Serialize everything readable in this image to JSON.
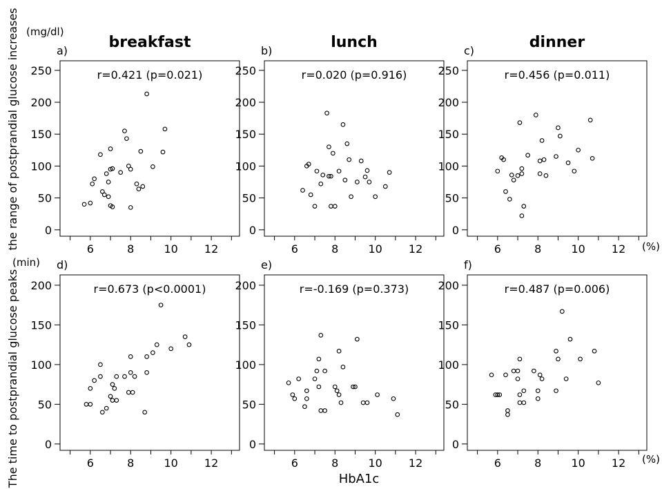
{
  "figure": {
    "y_label_top": "the range of postprandial glucose increases",
    "y_label_bottom": "The time to postprandial glucose peaks",
    "unit_top": "(mg/dl)",
    "unit_bottom": "(min)",
    "x_unit": "(%)",
    "x_label": "HbA1c"
  },
  "chart_data": [
    {
      "type": "scatter",
      "panel": "a)",
      "title": "breakfast",
      "stat": "r=0.421 (p=0.021)",
      "xlim": [
        4.5,
        13.4
      ],
      "ylim": [
        -10,
        265
      ],
      "xticks": [
        6,
        8,
        10,
        12
      ],
      "yticks": [
        0,
        50,
        100,
        150,
        200,
        250
      ],
      "grid": false,
      "points": [
        [
          5.7,
          40
        ],
        [
          6.0,
          42
        ],
        [
          6.1,
          72
        ],
        [
          6.2,
          80
        ],
        [
          6.5,
          118
        ],
        [
          6.6,
          60
        ],
        [
          6.7,
          55
        ],
        [
          6.8,
          88
        ],
        [
          6.9,
          75
        ],
        [
          6.9,
          52
        ],
        [
          7.0,
          127
        ],
        [
          7.0,
          38
        ],
        [
          7.0,
          95
        ],
        [
          7.1,
          96
        ],
        [
          7.1,
          36
        ],
        [
          7.5,
          90
        ],
        [
          7.7,
          155
        ],
        [
          7.8,
          143
        ],
        [
          7.9,
          100
        ],
        [
          8.0,
          95
        ],
        [
          8.0,
          35
        ],
        [
          8.3,
          72
        ],
        [
          8.4,
          64
        ],
        [
          8.5,
          123
        ],
        [
          8.6,
          68
        ],
        [
          8.8,
          213
        ],
        [
          9.1,
          99
        ],
        [
          9.6,
          122
        ],
        [
          9.7,
          158
        ]
      ]
    },
    {
      "type": "scatter",
      "panel": "b)",
      "title": "lunch",
      "stat": "r=0.020 (p=0.916)",
      "xlim": [
        4.5,
        13.4
      ],
      "ylim": [
        -10,
        265
      ],
      "xticks": [
        6,
        8,
        10,
        12
      ],
      "yticks": [
        0,
        50,
        100,
        150,
        200,
        250
      ],
      "grid": false,
      "points": [
        [
          6.4,
          62
        ],
        [
          6.6,
          100
        ],
        [
          6.7,
          103
        ],
        [
          6.8,
          55
        ],
        [
          7.0,
          37
        ],
        [
          7.1,
          92
        ],
        [
          7.3,
          72
        ],
        [
          7.4,
          86
        ],
        [
          7.6,
          183
        ],
        [
          7.7,
          130
        ],
        [
          7.7,
          84
        ],
        [
          7.8,
          84
        ],
        [
          7.8,
          37
        ],
        [
          7.9,
          120
        ],
        [
          8.0,
          37
        ],
        [
          8.2,
          92
        ],
        [
          8.4,
          165
        ],
        [
          8.5,
          78
        ],
        [
          8.6,
          135
        ],
        [
          8.7,
          110
        ],
        [
          8.8,
          52
        ],
        [
          9.1,
          75
        ],
        [
          9.3,
          108
        ],
        [
          9.5,
          83
        ],
        [
          9.6,
          93
        ],
        [
          9.7,
          75
        ],
        [
          10.0,
          52
        ],
        [
          10.5,
          68
        ],
        [
          10.7,
          90
        ]
      ]
    },
    {
      "type": "scatter",
      "panel": "c)",
      "title": "dinner",
      "stat": "r=0.456 (p=0.011)",
      "xlim": [
        4.5,
        13.4
      ],
      "ylim": [
        -10,
        265
      ],
      "xticks": [
        6,
        8,
        10,
        12
      ],
      "yticks": [
        0,
        50,
        100,
        150,
        200,
        250
      ],
      "grid": false,
      "points": [
        [
          6.0,
          92
        ],
        [
          6.2,
          113
        ],
        [
          6.3,
          110
        ],
        [
          6.4,
          60
        ],
        [
          6.6,
          48
        ],
        [
          6.7,
          86
        ],
        [
          6.8,
          78
        ],
        [
          7.0,
          85
        ],
        [
          7.1,
          168
        ],
        [
          7.2,
          96
        ],
        [
          7.2,
          88
        ],
        [
          7.2,
          22
        ],
        [
          7.3,
          37
        ],
        [
          7.5,
          117
        ],
        [
          7.9,
          180
        ],
        [
          8.1,
          88
        ],
        [
          8.1,
          108
        ],
        [
          8.2,
          140
        ],
        [
          8.3,
          110
        ],
        [
          8.4,
          85
        ],
        [
          8.9,
          115
        ],
        [
          9.0,
          160
        ],
        [
          9.1,
          147
        ],
        [
          9.5,
          105
        ],
        [
          9.8,
          92
        ],
        [
          10.0,
          125
        ],
        [
          10.6,
          172
        ],
        [
          10.7,
          112
        ]
      ]
    },
    {
      "type": "scatter",
      "panel": "d)",
      "title": "",
      "stat": "r=0.673 (p<0.0001)",
      "xlim": [
        4.5,
        13.4
      ],
      "ylim": [
        -8,
        213
      ],
      "xticks": [
        6,
        8,
        10,
        12
      ],
      "yticks": [
        0,
        50,
        100,
        150,
        200
      ],
      "grid": false,
      "points": [
        [
          5.8,
          50
        ],
        [
          6.0,
          50
        ],
        [
          6.0,
          70
        ],
        [
          6.2,
          80
        ],
        [
          6.5,
          85
        ],
        [
          6.5,
          100
        ],
        [
          6.6,
          40
        ],
        [
          6.8,
          45
        ],
        [
          7.0,
          60
        ],
        [
          7.1,
          55
        ],
        [
          7.1,
          75
        ],
        [
          7.2,
          70
        ],
        [
          7.3,
          55
        ],
        [
          7.3,
          85
        ],
        [
          7.7,
          85
        ],
        [
          7.9,
          65
        ],
        [
          8.0,
          90
        ],
        [
          8.0,
          110
        ],
        [
          8.1,
          65
        ],
        [
          8.2,
          85
        ],
        [
          8.7,
          40
        ],
        [
          8.8,
          110
        ],
        [
          8.8,
          90
        ],
        [
          9.1,
          115
        ],
        [
          9.3,
          125
        ],
        [
          9.5,
          175
        ],
        [
          10.0,
          120
        ],
        [
          10.7,
          135
        ],
        [
          10.9,
          125
        ]
      ]
    },
    {
      "type": "scatter",
      "panel": "e)",
      "title": "",
      "stat": "r=-0.169 (p=0.373)",
      "xlim": [
        4.5,
        13.4
      ],
      "ylim": [
        -8,
        213
      ],
      "xticks": [
        6,
        8,
        10,
        12
      ],
      "yticks": [
        0,
        50,
        100,
        150,
        200
      ],
      "grid": false,
      "points": [
        [
          5.7,
          77
        ],
        [
          5.9,
          62
        ],
        [
          6.0,
          57
        ],
        [
          6.2,
          82
        ],
        [
          6.5,
          47
        ],
        [
          6.6,
          57
        ],
        [
          6.6,
          67
        ],
        [
          7.0,
          82
        ],
        [
          7.1,
          92
        ],
        [
          7.2,
          72
        ],
        [
          7.2,
          107
        ],
        [
          7.3,
          137
        ],
        [
          7.3,
          42
        ],
        [
          7.5,
          92
        ],
        [
          7.5,
          42
        ],
        [
          8.0,
          72
        ],
        [
          8.1,
          67
        ],
        [
          8.2,
          62
        ],
        [
          8.2,
          117
        ],
        [
          8.3,
          52
        ],
        [
          8.4,
          97
        ],
        [
          8.9,
          72
        ],
        [
          9.0,
          72
        ],
        [
          9.1,
          132
        ],
        [
          9.4,
          52
        ],
        [
          9.6,
          52
        ],
        [
          10.1,
          62
        ],
        [
          10.9,
          57
        ],
        [
          11.1,
          37
        ]
      ]
    },
    {
      "type": "scatter",
      "panel": "f)",
      "title": "",
      "stat": "r=0.487 (p=0.006)",
      "xlim": [
        4.5,
        13.4
      ],
      "ylim": [
        -8,
        213
      ],
      "xticks": [
        6,
        8,
        10,
        12
      ],
      "yticks": [
        0,
        50,
        100,
        150,
        200
      ],
      "grid": false,
      "points": [
        [
          5.7,
          87
        ],
        [
          5.9,
          62
        ],
        [
          6.0,
          62
        ],
        [
          6.1,
          62
        ],
        [
          6.4,
          87
        ],
        [
          6.5,
          42
        ],
        [
          6.5,
          37
        ],
        [
          6.8,
          92
        ],
        [
          7.0,
          92
        ],
        [
          7.0,
          82
        ],
        [
          7.1,
          62
        ],
        [
          7.1,
          52
        ],
        [
          7.1,
          107
        ],
        [
          7.3,
          67
        ],
        [
          7.3,
          52
        ],
        [
          7.8,
          92
        ],
        [
          8.0,
          67
        ],
        [
          8.0,
          57
        ],
        [
          8.1,
          87
        ],
        [
          8.2,
          82
        ],
        [
          8.9,
          67
        ],
        [
          8.9,
          117
        ],
        [
          9.0,
          107
        ],
        [
          9.2,
          167
        ],
        [
          9.4,
          82
        ],
        [
          9.6,
          132
        ],
        [
          10.1,
          107
        ],
        [
          10.8,
          117
        ],
        [
          11.0,
          77
        ]
      ]
    }
  ]
}
